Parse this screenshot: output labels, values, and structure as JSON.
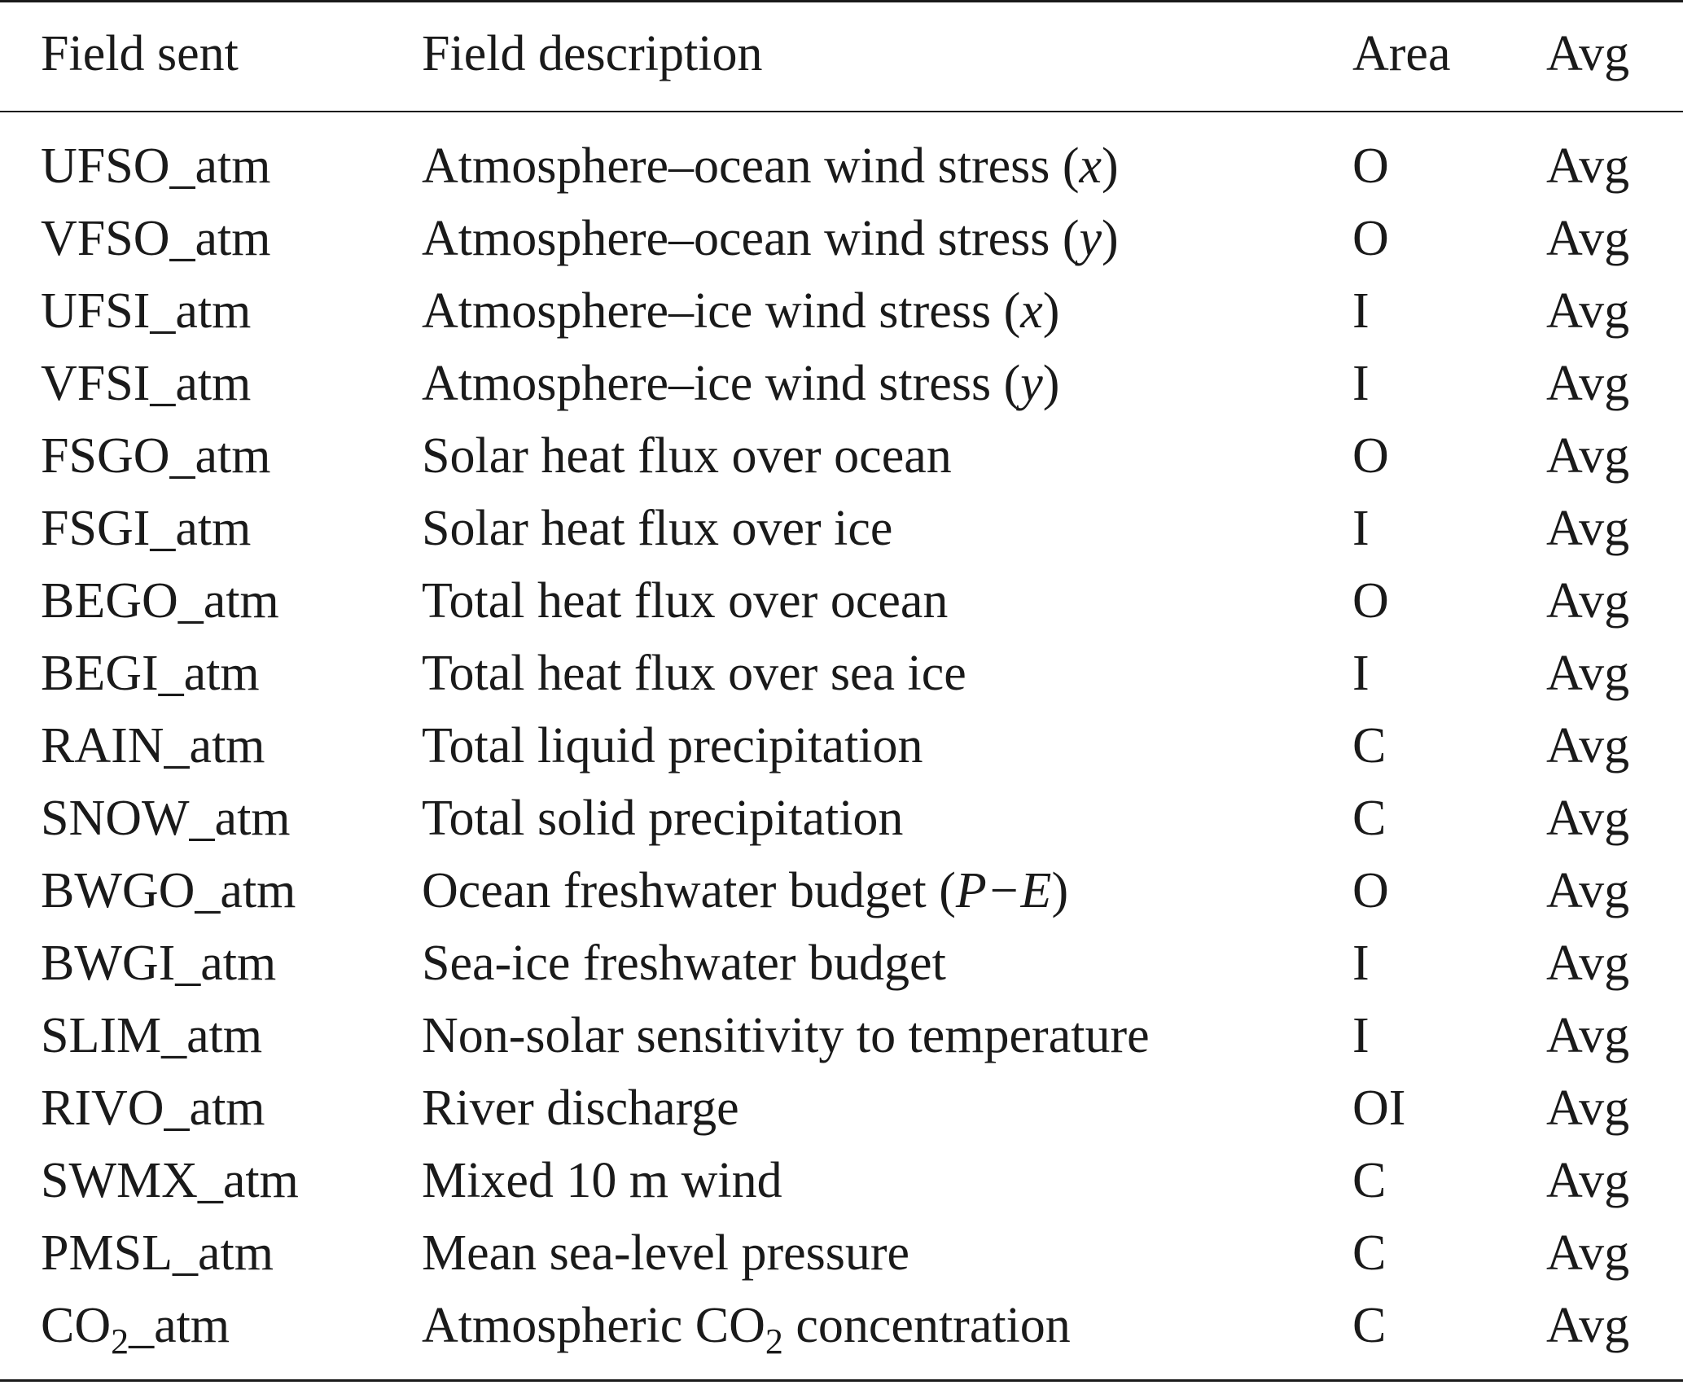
{
  "table": {
    "headers": [
      "Field sent",
      "Field description",
      "Area",
      "Avg"
    ],
    "rows": [
      {
        "field": [
          {
            "t": "UFSO_atm"
          }
        ],
        "desc": [
          {
            "t": "Atmosphere–ocean wind stress ("
          },
          {
            "t": "x",
            "s": "it"
          },
          {
            "t": ")"
          }
        ],
        "area": "O",
        "avg": "Avg"
      },
      {
        "field": [
          {
            "t": "VFSO_atm"
          }
        ],
        "desc": [
          {
            "t": "Atmosphere–ocean wind stress ("
          },
          {
            "t": "y",
            "s": "it"
          },
          {
            "t": ")"
          }
        ],
        "area": "O",
        "avg": "Avg"
      },
      {
        "field": [
          {
            "t": "UFSI_atm"
          }
        ],
        "desc": [
          {
            "t": "Atmosphere–ice wind stress ("
          },
          {
            "t": "x",
            "s": "it"
          },
          {
            "t": ")"
          }
        ],
        "area": "I",
        "avg": "Avg"
      },
      {
        "field": [
          {
            "t": "VFSI_atm"
          }
        ],
        "desc": [
          {
            "t": "Atmosphere–ice wind stress ("
          },
          {
            "t": "y",
            "s": "it"
          },
          {
            "t": ")"
          }
        ],
        "area": "I",
        "avg": "Avg"
      },
      {
        "field": [
          {
            "t": "FSGO_atm"
          }
        ],
        "desc": [
          {
            "t": "Solar heat flux over ocean"
          }
        ],
        "area": "O",
        "avg": "Avg"
      },
      {
        "field": [
          {
            "t": "FSGI_atm"
          }
        ],
        "desc": [
          {
            "t": "Solar heat flux over ice"
          }
        ],
        "area": "I",
        "avg": "Avg"
      },
      {
        "field": [
          {
            "t": "BEGO_atm"
          }
        ],
        "desc": [
          {
            "t": "Total heat flux over ocean"
          }
        ],
        "area": "O",
        "avg": "Avg"
      },
      {
        "field": [
          {
            "t": "BEGI_atm"
          }
        ],
        "desc": [
          {
            "t": "Total heat flux over sea ice"
          }
        ],
        "area": "I",
        "avg": "Avg"
      },
      {
        "field": [
          {
            "t": "RAIN_atm"
          }
        ],
        "desc": [
          {
            "t": "Total liquid precipitation"
          }
        ],
        "area": "C",
        "avg": "Avg"
      },
      {
        "field": [
          {
            "t": "SNOW_atm"
          }
        ],
        "desc": [
          {
            "t": "Total solid precipitation"
          }
        ],
        "area": "C",
        "avg": "Avg"
      },
      {
        "field": [
          {
            "t": "BWGO_atm"
          }
        ],
        "desc": [
          {
            "t": "Ocean freshwater budget ("
          },
          {
            "t": "P−E",
            "s": "it"
          },
          {
            "t": ")"
          }
        ],
        "area": "O",
        "avg": "Avg"
      },
      {
        "field": [
          {
            "t": "BWGI_atm"
          }
        ],
        "desc": [
          {
            "t": "Sea-ice freshwater budget"
          }
        ],
        "area": "I",
        "avg": "Avg"
      },
      {
        "field": [
          {
            "t": "SLIM_atm"
          }
        ],
        "desc": [
          {
            "t": "Non-solar sensitivity to temperature"
          }
        ],
        "area": "I",
        "avg": "Avg"
      },
      {
        "field": [
          {
            "t": "RIVO_atm"
          }
        ],
        "desc": [
          {
            "t": "River discharge"
          }
        ],
        "area": "OI",
        "avg": "Avg"
      },
      {
        "field": [
          {
            "t": "SWMX_atm"
          }
        ],
        "desc": [
          {
            "t": "Mixed 10 m wind"
          }
        ],
        "area": "C",
        "avg": "Avg"
      },
      {
        "field": [
          {
            "t": "PMSL_atm"
          }
        ],
        "desc": [
          {
            "t": "Mean sea-level pressure"
          }
        ],
        "area": "C",
        "avg": "Avg"
      },
      {
        "field": [
          {
            "t": "CO"
          },
          {
            "t": "2",
            "s": "sub"
          },
          {
            "t": "_atm"
          }
        ],
        "desc": [
          {
            "t": "Atmospheric CO"
          },
          {
            "t": "2",
            "s": "sub"
          },
          {
            "t": " concentration"
          }
        ],
        "area": "C",
        "avg": "Avg"
      }
    ]
  }
}
